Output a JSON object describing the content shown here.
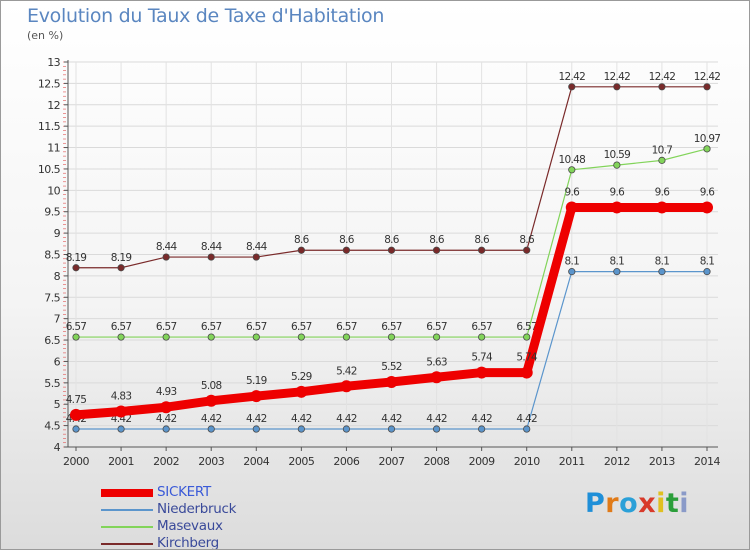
{
  "title": "Evolution du Taux de Taxe d'Habitation",
  "unit_label": "(en %)",
  "brand": {
    "letters": [
      "P",
      "r",
      "o",
      "x",
      "i",
      "t",
      "i"
    ],
    "colors": [
      "#1f8fd8",
      "#e07a18",
      "#2aa0d8",
      "#d83a2a",
      "#e0c020",
      "#2b9e3a",
      "#8a9ac8"
    ]
  },
  "chart_data": {
    "type": "line",
    "title": "Evolution du Taux de Taxe d'Habitation",
    "ylabel": "(en %)",
    "x": [
      "2000",
      "2001",
      "2002",
      "2003",
      "2004",
      "2005",
      "2006",
      "2007",
      "2008",
      "2009",
      "2010",
      "2011",
      "2012",
      "2013",
      "2014"
    ],
    "ylim": [
      4,
      13
    ],
    "yticks": [
      "4",
      "4.5",
      "5",
      "5.5",
      "6",
      "6.5",
      "7",
      "7.5",
      "8",
      "8.5",
      "9",
      "9.5",
      "10",
      "10.5",
      "11",
      "11.5",
      "12",
      "12.5",
      "13"
    ],
    "grid": true,
    "legend_position": "bottom-left",
    "series": [
      {
        "name": "SICKERT",
        "color": "#ee0000",
        "emphasis": true,
        "values": [
          4.75,
          4.83,
          4.93,
          5.08,
          5.19,
          5.29,
          5.42,
          5.52,
          5.63,
          5.74,
          5.74,
          9.6,
          9.6,
          9.6,
          9.6
        ]
      },
      {
        "name": "Niederbruck",
        "color": "#5b95cc",
        "values": [
          4.42,
          4.42,
          4.42,
          4.42,
          4.42,
          4.42,
          4.42,
          4.42,
          4.42,
          4.42,
          4.42,
          8.1,
          8.1,
          8.1,
          8.1
        ]
      },
      {
        "name": "Masevaux",
        "color": "#82d45a",
        "values": [
          6.57,
          6.57,
          6.57,
          6.57,
          6.57,
          6.57,
          6.57,
          6.57,
          6.57,
          6.57,
          6.57,
          10.48,
          10.59,
          10.7,
          10.97
        ]
      },
      {
        "name": "Kirchberg",
        "color": "#7a2a2a",
        "values": [
          8.19,
          8.19,
          8.44,
          8.44,
          8.44,
          8.6,
          8.6,
          8.6,
          8.6,
          8.6,
          8.6,
          12.42,
          12.42,
          12.42,
          12.42
        ]
      }
    ]
  }
}
